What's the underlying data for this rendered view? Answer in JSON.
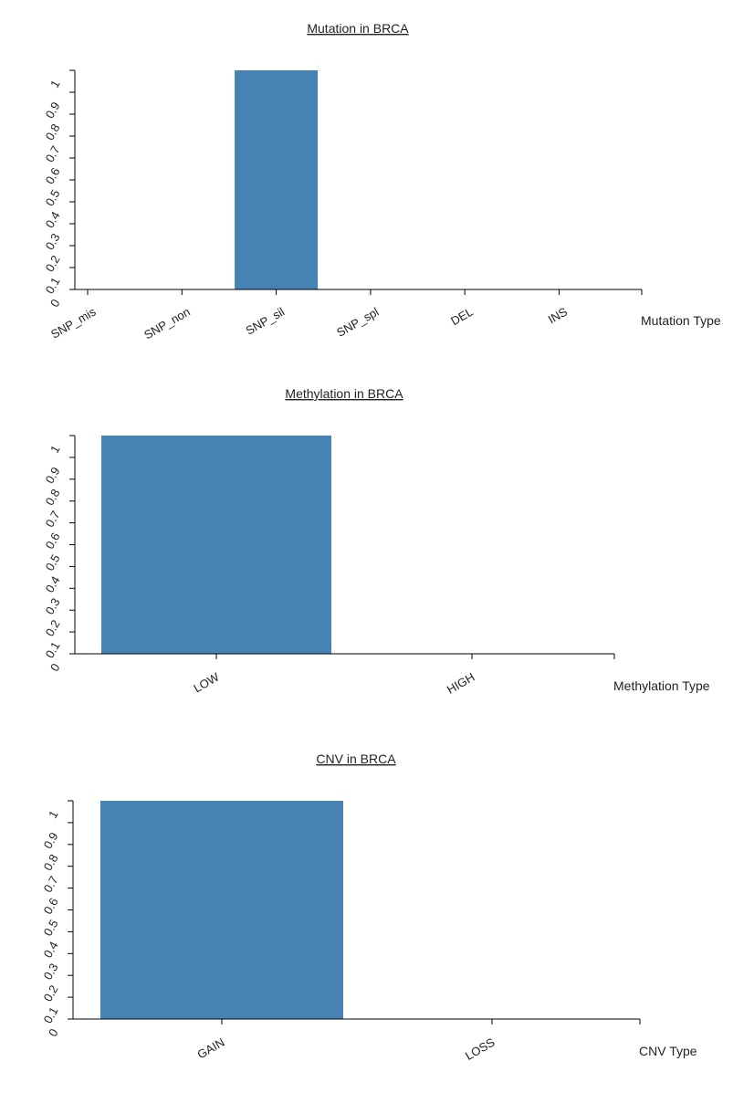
{
  "colors": {
    "bar": "#4682b4",
    "axis": "#000000",
    "text": "#222222"
  },
  "chart_data": [
    {
      "type": "bar",
      "title": "Mutation in BRCA",
      "xlabel": "Mutation Type",
      "ylabel": "",
      "categories": [
        "SNP_mis",
        "SNP_non",
        "SNP_sil",
        "SNP_spl",
        "DEL",
        "INS"
      ],
      "values": [
        0,
        0,
        1,
        0,
        0,
        0
      ],
      "ylim": [
        0,
        1
      ],
      "yticks": [
        "0",
        "0.1",
        "0.2",
        "0.3",
        "0.4",
        "0.5",
        "0.6",
        "0.7",
        "0.8",
        "0.9",
        "1"
      ],
      "grid": false,
      "legend": "none"
    },
    {
      "type": "bar",
      "title": "Methylation in BRCA",
      "xlabel": "Methylation Type",
      "ylabel": "",
      "categories": [
        "LOW",
        "HIGH"
      ],
      "values": [
        1,
        0
      ],
      "ylim": [
        0,
        1
      ],
      "yticks": [
        "0",
        "0.1",
        "0.2",
        "0.3",
        "0.4",
        "0.5",
        "0.6",
        "0.7",
        "0.8",
        "0.9",
        "1"
      ],
      "grid": false,
      "legend": "none"
    },
    {
      "type": "bar",
      "title": "CNV in BRCA",
      "xlabel": "CNV Type",
      "ylabel": "",
      "categories": [
        "GAIN",
        "LOSS"
      ],
      "values": [
        1,
        0
      ],
      "ylim": [
        0,
        1
      ],
      "yticks": [
        "0",
        "0.1",
        "0.2",
        "0.3",
        "0.4",
        "0.5",
        "0.6",
        "0.7",
        "0.8",
        "0.9",
        "1"
      ],
      "grid": false,
      "legend": "none"
    }
  ]
}
